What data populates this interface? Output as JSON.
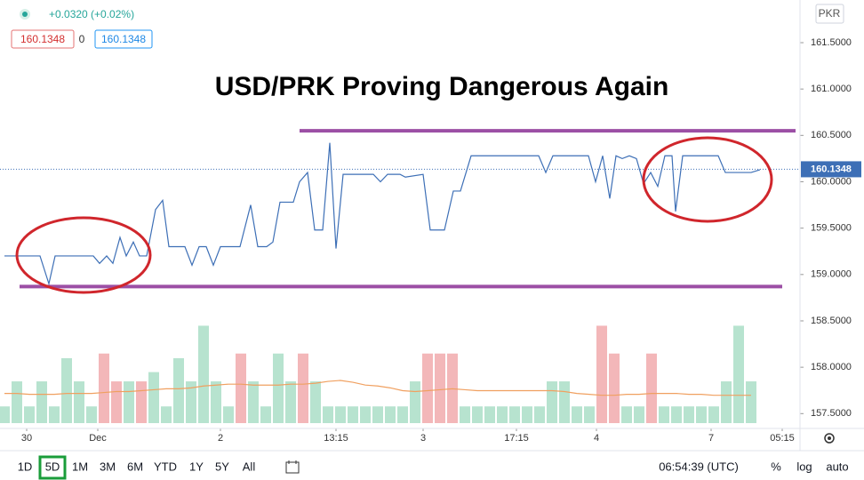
{
  "chart_data": [
    {
      "type": "line",
      "title": "USD/PRK Proving Dangerous Again",
      "x": [
        5,
        45,
        55,
        62,
        105,
        112,
        120,
        127,
        135,
        142,
        150,
        157,
        165,
        175,
        183,
        190,
        208,
        216,
        224,
        232,
        240,
        248,
        270,
        282,
        290,
        300,
        307,
        315,
        330,
        337,
        346,
        354,
        363,
        371,
        378,
        386,
        420,
        428,
        436,
        450,
        456,
        476,
        484,
        500,
        510,
        518,
        530,
        606,
        614,
        622,
        662,
        670,
        678,
        686,
        693,
        700,
        708,
        716,
        724,
        732,
        740,
        748,
        756,
        760,
        768,
        808,
        816,
        845,
        855
      ],
      "series": [
        {
          "color": "#3d6fb6",
          "values": [
            159.2,
            159.2,
            158.9,
            159.2,
            159.2,
            159.12,
            159.2,
            159.12,
            159.4,
            159.2,
            159.35,
            159.2,
            159.2,
            159.7,
            159.8,
            159.3,
            159.3,
            159.1,
            159.3,
            159.3,
            159.1,
            159.3,
            159.3,
            159.75,
            159.3,
            159.3,
            159.35,
            159.78,
            159.78,
            160.0,
            160.1,
            159.48,
            159.48,
            160.42,
            159.28,
            160.08,
            160.08,
            160.0,
            160.08,
            160.08,
            160.05,
            160.08,
            159.48,
            159.48,
            159.9,
            159.9,
            160.28,
            160.28,
            160.1,
            160.28,
            160.28,
            160.0,
            160.28,
            159.82,
            160.28,
            160.25,
            160.28,
            160.25,
            159.98,
            160.1,
            159.95,
            160.28,
            160.28,
            159.68,
            160.28,
            160.28,
            160.1,
            160.1,
            160.13
          ]
        }
      ],
      "xlim": [
        0,
        900
      ],
      "ylim": [
        157.34,
        161.96
      ],
      "xticks": [
        {
          "value": 30,
          "label": "30"
        },
        {
          "value": 110,
          "label": "Dec"
        },
        {
          "value": 248,
          "label": "2"
        },
        {
          "value": 378,
          "label": "13:15"
        },
        {
          "value": 476,
          "label": "3"
        },
        {
          "value": 581,
          "label": "17:15"
        },
        {
          "value": 671,
          "label": "4"
        },
        {
          "value": 800,
          "label": "7"
        },
        {
          "value": 880,
          "label": "05:15"
        }
      ],
      "yticks": [
        {
          "value": 157.5,
          "label": "157.5000"
        },
        {
          "value": 158,
          "label": "158.0000"
        },
        {
          "value": 158.5,
          "label": "158.5000"
        },
        {
          "value": 159,
          "label": "159.0000"
        },
        {
          "value": 159.5,
          "label": "159.5000"
        },
        {
          "value": 160,
          "label": "160.0000"
        },
        {
          "value": 160.5,
          "label": "160.5000"
        },
        {
          "value": 161,
          "label": "161.0000"
        },
        {
          "value": 161.5,
          "label": "161.5000"
        }
      ],
      "last_price": 160.1348,
      "levels": [
        {
          "value": 160.55,
          "color": "#9c4fa5",
          "x": [
            337,
            895
          ]
        },
        {
          "value": 158.87,
          "color": "#9c4fa5",
          "x": [
            22,
            880
          ]
        }
      ]
    },
    {
      "type": "volume",
      "x": [
        5,
        19,
        33,
        47,
        61,
        75,
        89,
        103,
        117,
        131,
        145,
        159,
        173,
        187,
        201,
        215,
        229,
        243,
        257,
        271,
        285,
        299,
        313,
        327,
        341,
        355,
        369,
        383,
        397,
        411,
        425,
        439,
        453,
        467,
        481,
        495,
        509,
        523,
        537,
        551,
        565,
        579,
        593,
        607,
        621,
        635,
        649,
        663,
        677,
        691,
        705,
        719,
        733,
        747,
        761,
        775,
        789,
        803,
        817,
        831,
        845
      ],
      "values": [
        18,
        45,
        18,
        45,
        18,
        70,
        45,
        18,
        75,
        45,
        45,
        45,
        55,
        18,
        70,
        45,
        105,
        45,
        18,
        75,
        45,
        18,
        75,
        45,
        75,
        45,
        18,
        18,
        18,
        18,
        18,
        18,
        18,
        45,
        75,
        75,
        75,
        18,
        18,
        18,
        18,
        18,
        18,
        18,
        45,
        45,
        18,
        18,
        105,
        75,
        18,
        18,
        75,
        18,
        18,
        18,
        18,
        18,
        45,
        105,
        45
      ],
      "ma": [
        32,
        32,
        31,
        31,
        31,
        32,
        32,
        32,
        33,
        34,
        34,
        35,
        36,
        37,
        37,
        38,
        40,
        41,
        42,
        42,
        41,
        41,
        41,
        42,
        42,
        43,
        45,
        46,
        44,
        41,
        40,
        38,
        35,
        34,
        35,
        36,
        37,
        36,
        35,
        35,
        35,
        35,
        35,
        35,
        35,
        34,
        32,
        31,
        30,
        30,
        31,
        31,
        32,
        32,
        32,
        31,
        31,
        30,
        30,
        30,
        30
      ],
      "down": [
        8,
        9,
        11,
        19,
        24,
        34,
        35,
        36,
        48,
        49,
        52
      ],
      "color": "#b7e3cf",
      "down_color": "#f3b7b9",
      "ma_color": "#f0a060"
    }
  ],
  "header": {
    "change": "+0.0320 (+0.02%)",
    "bid": "160.1348",
    "spread": "0",
    "ask": "160.1348",
    "currency": "PKR"
  },
  "toolbar": {
    "ranges": [
      "1D",
      "5D",
      "1M",
      "3M",
      "6M",
      "YTD",
      "1Y",
      "5Y",
      "All"
    ],
    "selected": 1,
    "time": "06:54:39 (UTC)",
    "options": [
      "%",
      "log",
      "auto"
    ]
  }
}
